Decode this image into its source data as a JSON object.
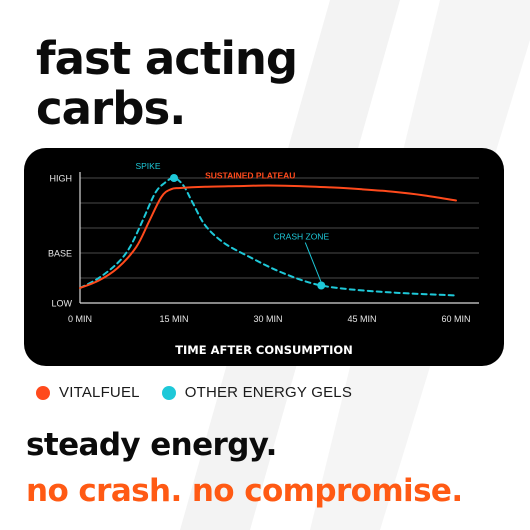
{
  "headline": {
    "line1": "fast acting",
    "line2": "carbs."
  },
  "colors": {
    "vitalfuel": "#ff4a1c",
    "other": "#1ec8d8",
    "tagline_accent": "#ff5a14",
    "card_bg": "#000000",
    "grid": "#4a4a4a"
  },
  "chart_data": {
    "type": "line",
    "title": "",
    "xlabel": "TIME AFTER CONSUMPTION",
    "ylabel": "",
    "x_ticks": [
      0,
      15,
      30,
      45,
      60
    ],
    "x_tick_labels": [
      "0 MIN",
      "15 MIN",
      "30 MIN",
      "45 MIN",
      "60 MIN"
    ],
    "xlim": [
      0,
      60
    ],
    "y_tick_labels": [
      "LOW",
      "BASE",
      "HIGH"
    ],
    "ylim": [
      0,
      100
    ],
    "y_ticks": [
      0,
      40,
      100
    ],
    "grid": "horizontal",
    "series": [
      {
        "name": "VITALFUEL",
        "color": "#ff4a1c",
        "style": "solid",
        "x": [
          0,
          3,
          6,
          9,
          11,
          13,
          14.5,
          16,
          20,
          25,
          30,
          35,
          40,
          45,
          50,
          55,
          60
        ],
        "y": [
          12,
          18,
          28,
          45,
          65,
          85,
          91,
          92,
          93,
          93.5,
          94,
          93.5,
          92.5,
          91,
          89,
          86,
          82
        ]
      },
      {
        "name": "OTHER ENERGY GELS",
        "color": "#1ec8d8",
        "style": "dashed",
        "x": [
          0,
          3,
          6,
          8,
          10,
          12,
          13.5,
          15,
          16.5,
          18,
          20,
          23,
          27,
          31,
          35,
          38.5,
          43,
          48,
          53,
          58,
          60
        ],
        "y": [
          12,
          20,
          32,
          45,
          66,
          88,
          96,
          100,
          94,
          80,
          62,
          48,
          37,
          27,
          19,
          14,
          11,
          9,
          7.5,
          6.5,
          6
        ]
      }
    ],
    "annotations": [
      {
        "text": "SPIKE",
        "color": "#1ec8d8",
        "x": 15,
        "y": 100,
        "marker": true
      },
      {
        "text": "SUSTAINED PLATEAU",
        "color": "#ff4a1c",
        "x": 31,
        "y": 94,
        "marker": false
      },
      {
        "text": "CRASH ZONE",
        "color": "#1ec8d8",
        "x": 38.5,
        "y": 14,
        "marker": true
      }
    ]
  },
  "legend": [
    {
      "label": "VITALFUEL",
      "color": "#ff4a1c"
    },
    {
      "label": "OTHER ENERGY GELS",
      "color": "#1ec8d8"
    }
  ],
  "tagline": {
    "line1": "steady energy.",
    "line2": "no crash. no compromise."
  }
}
